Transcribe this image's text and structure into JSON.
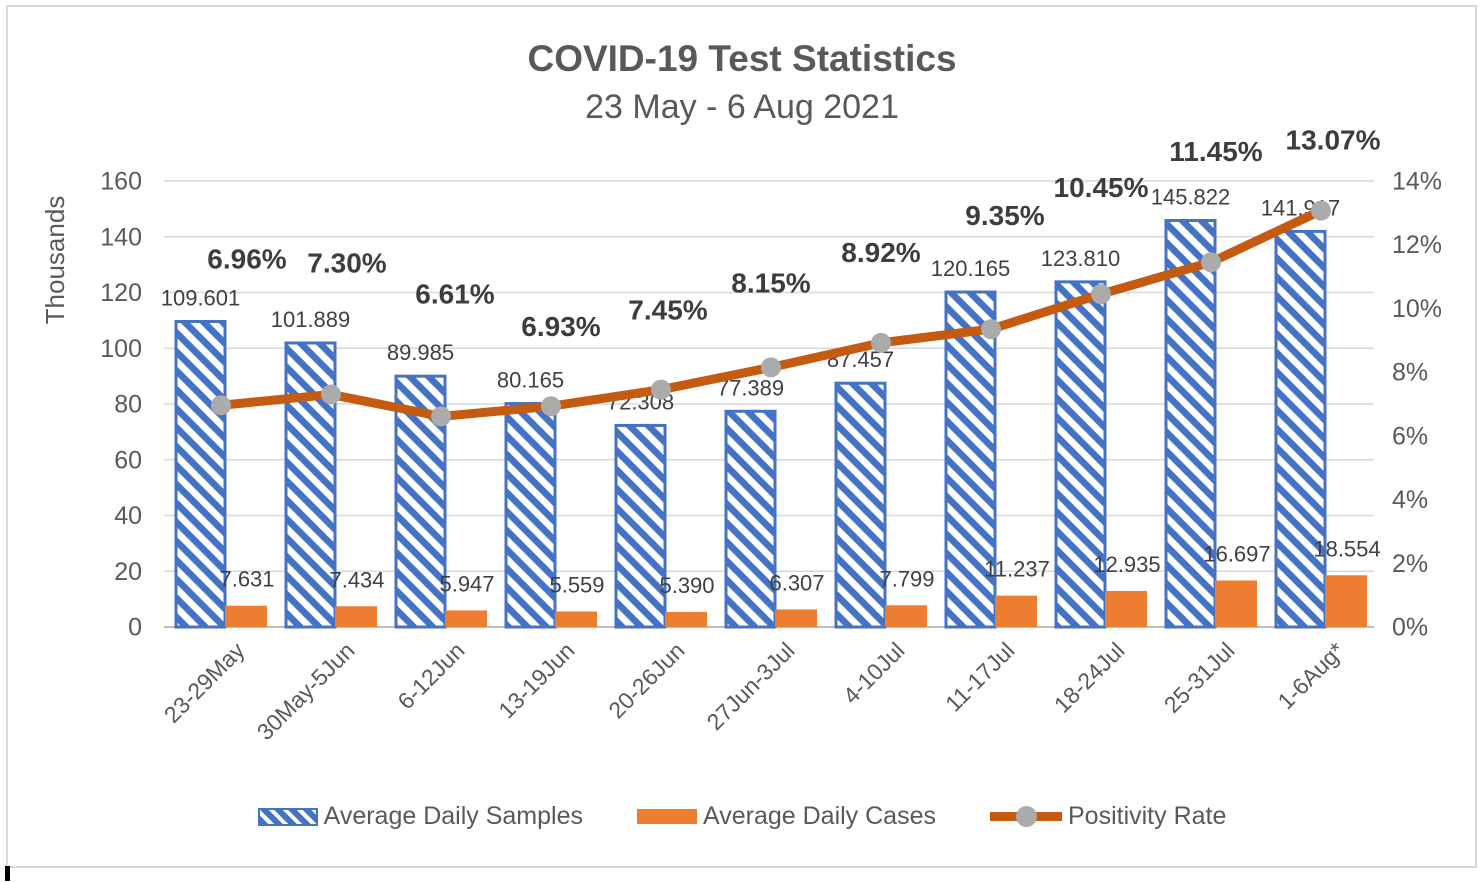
{
  "chart": {
    "title": "COVID-19 Test Statistics",
    "subtitle": "23 May - 6 Aug 2021"
  },
  "chart_data": {
    "type": "combo",
    "title": "COVID-19 Test Statistics",
    "subtitle": "23 May - 6 Aug 2021",
    "categories": [
      "23-29May",
      "30May-5Jun",
      "6-12Jun",
      "13-19Jun",
      "20-26Jun",
      "27Jun-3Jul",
      "4-10Jul",
      "11-17Jul",
      "18-24Jul",
      "25-31Jul",
      "1-6Aug*"
    ],
    "series": [
      {
        "name": "Average Daily Samples",
        "chart_type": "bar",
        "axis": "left",
        "unit": "thousands",
        "color": "#4472C4",
        "fill_pattern": "diagonal-hatch",
        "values": [
          109.601,
          101.889,
          89.985,
          80.165,
          72.308,
          77.389,
          87.457,
          120.165,
          123.81,
          145.822,
          141.917
        ],
        "data_labels": [
          "109.601",
          "101.889",
          "89.985",
          "80.165",
          "72.308",
          "77.389",
          "87.457",
          "120.165",
          "123.810",
          "145.822",
          "141.917"
        ]
      },
      {
        "name": "Average Daily Cases",
        "chart_type": "bar",
        "axis": "left",
        "unit": "thousands",
        "color": "#ED7D31",
        "fill_pattern": "solid",
        "values": [
          7.631,
          7.434,
          5.947,
          5.559,
          5.39,
          6.307,
          7.799,
          11.237,
          12.935,
          16.697,
          18.554
        ],
        "data_labels": [
          "7.631",
          "7.434",
          "5.947",
          "5.559",
          "5.390",
          "6.307",
          "7.799",
          "11.237",
          "12.935",
          "16.697",
          "18.554"
        ]
      },
      {
        "name": "Positivity Rate",
        "chart_type": "line",
        "axis": "right",
        "unit": "percent",
        "color": "#C55A11",
        "marker_color": "#ABABAB",
        "values": [
          6.96,
          7.3,
          6.61,
          6.93,
          7.45,
          8.15,
          8.92,
          9.35,
          10.45,
          11.45,
          13.07
        ],
        "data_labels": [
          "6.96%",
          "7.30%",
          "6.61%",
          "6.93%",
          "7.45%",
          "8.15%",
          "8.92%",
          "9.35%",
          "10.45%",
          "11.45%",
          "13.07%"
        ]
      }
    ],
    "left_axis": {
      "title": "Thousands",
      "min": 0,
      "max": 160,
      "step": 20,
      "tick_labels": [
        "0",
        "20",
        "40",
        "60",
        "80",
        "100",
        "120",
        "140",
        "160"
      ]
    },
    "right_axis": {
      "min": 0,
      "max": 14,
      "step": 2,
      "tick_labels": [
        "0%",
        "2%",
        "4%",
        "6%",
        "8%",
        "10%",
        "12%",
        "14%"
      ]
    },
    "grid": true,
    "legend_position": "bottom"
  },
  "legend": {
    "items": [
      {
        "label": "Average Daily Samples",
        "swatch": "hatched-bar"
      },
      {
        "label": "Average Daily Cases",
        "swatch": "solid-bar"
      },
      {
        "label": "Positivity Rate",
        "swatch": "line-marker"
      }
    ]
  },
  "colors": {
    "samples_blue": "#4472C4",
    "cases_orange": "#ED7D31",
    "positivity_line": "#C55A11",
    "marker_gray": "#ABABAB",
    "gridline_gray": "#D9D9D9",
    "axis_line_gray": "#BFBFBF",
    "axis_text_gray": "#595959",
    "data_label_dark": "#404040"
  }
}
